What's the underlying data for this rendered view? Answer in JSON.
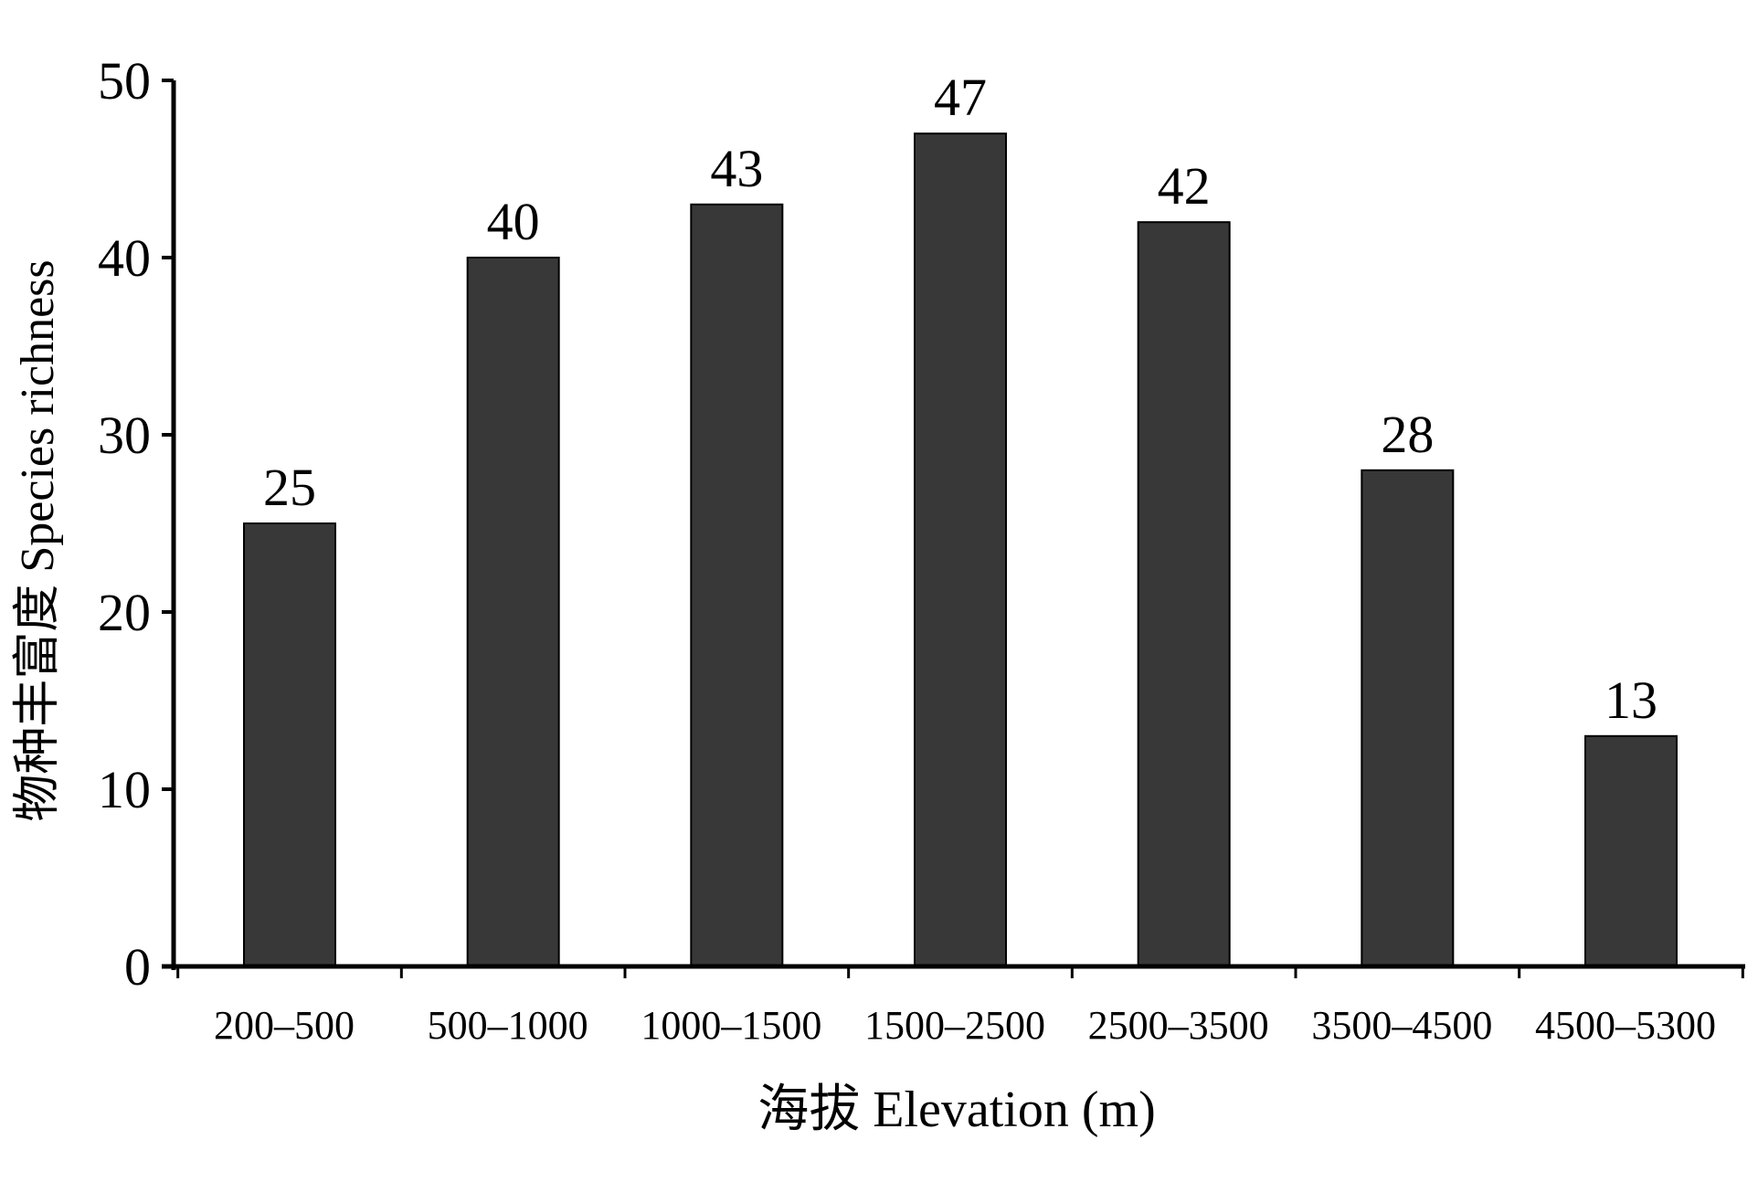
{
  "chart_data": {
    "type": "bar",
    "title": "",
    "xlabel": "海拔  Elevation (m)",
    "ylabel": "物种丰富度  Species richness",
    "categories": [
      "200–500",
      "500–1000",
      "1000–1500",
      "1500–2500",
      "2500–3500",
      "3500–4500",
      "4500–5300"
    ],
    "values": [
      25,
      40,
      43,
      47,
      42,
      28,
      13
    ],
    "data_labels": [
      "25",
      "40",
      "43",
      "47",
      "42",
      "28",
      "13"
    ],
    "ylim": [
      0,
      50
    ],
    "yticks": [
      0,
      10,
      20,
      30,
      40,
      50
    ],
    "ytick_labels": [
      "0",
      "10",
      "20",
      "30",
      "40",
      "50"
    ],
    "grid": false,
    "legend": "none",
    "bar_color": "#383838",
    "bar_edge_color": "#000000"
  }
}
